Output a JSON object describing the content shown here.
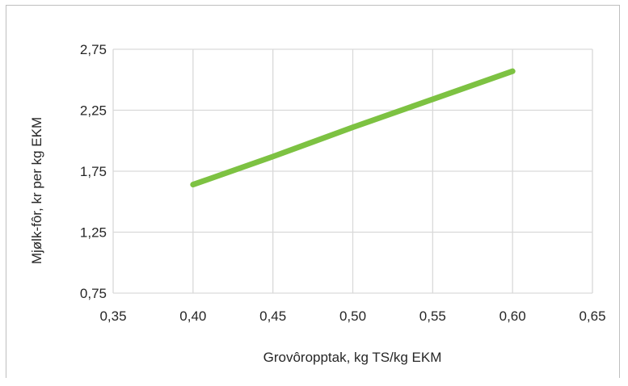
{
  "chart_data": {
    "type": "line",
    "title": "",
    "xlabel": "Grovôropptak, kg TS/kg EKM",
    "ylabel": "Mjølk-fôr, kr per kg EKM",
    "xlim": [
      0.35,
      0.65
    ],
    "ylim": [
      0.75,
      2.75
    ],
    "x_ticks": [
      0.35,
      0.4,
      0.45,
      0.5,
      0.55,
      0.6,
      0.65
    ],
    "x_tick_labels": [
      "0,35",
      "0,40",
      "0,45",
      "0,50",
      "0,55",
      "0,60",
      "0,65"
    ],
    "y_ticks": [
      0.75,
      1.25,
      1.75,
      2.25,
      2.75
    ],
    "y_tick_labels": [
      "0,75",
      "1,25",
      "1,75",
      "2,25",
      "2,75"
    ],
    "grid": true,
    "legend": "none",
    "series": [
      {
        "color": "#7dc242",
        "x": [
          0.4,
          0.45,
          0.5,
          0.55,
          0.6
        ],
        "y": [
          1.64,
          1.87,
          2.11,
          2.34,
          2.57
        ]
      }
    ]
  }
}
